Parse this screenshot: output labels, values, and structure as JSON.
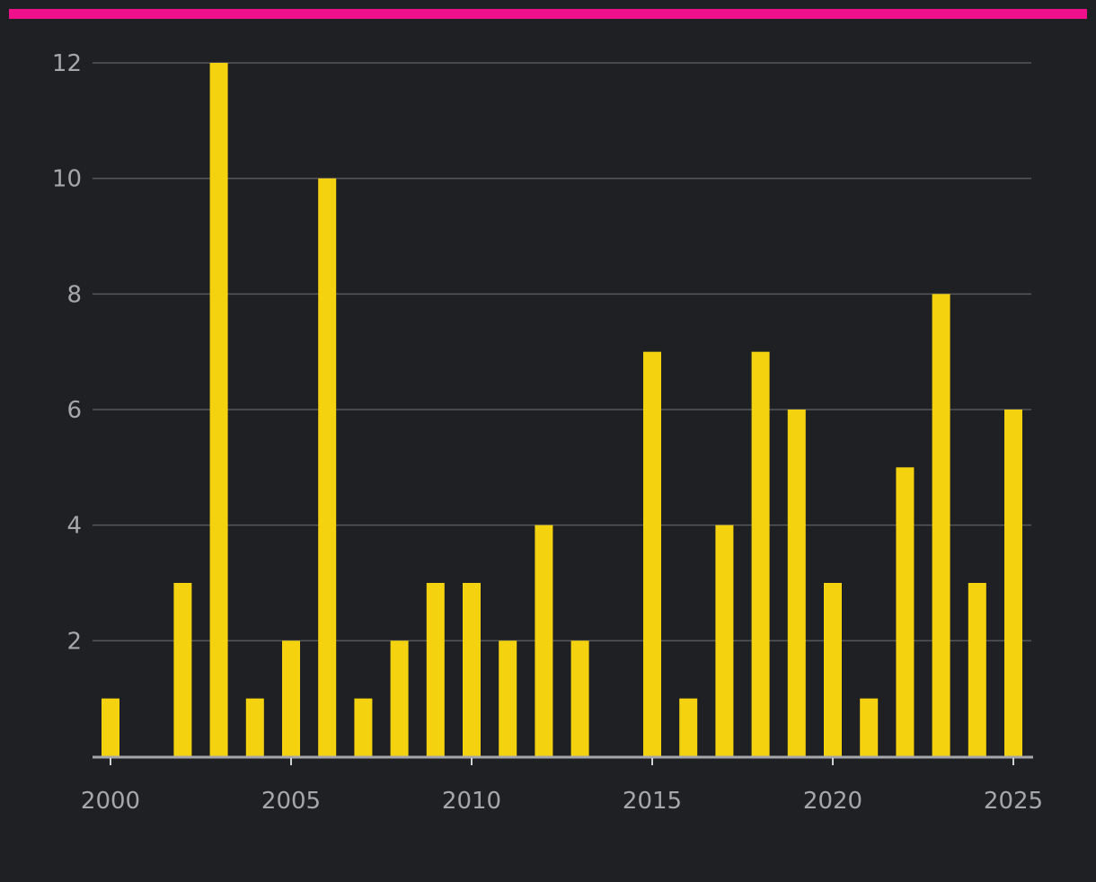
{
  "colors": {
    "background": "#1f2023",
    "accent": "#f0108c",
    "bar": "#f5d20f",
    "grid": "#55575b",
    "axis": "#a6a7ab",
    "text": "#a6a7ab"
  },
  "chart_data": {
    "type": "bar",
    "title": "",
    "xlabel": "",
    "ylabel": "",
    "x": [
      2000,
      2001,
      2002,
      2003,
      2004,
      2005,
      2006,
      2007,
      2008,
      2009,
      2010,
      2011,
      2012,
      2013,
      2014,
      2015,
      2016,
      2017,
      2018,
      2019,
      2020,
      2021,
      2022,
      2023,
      2024,
      2025
    ],
    "values": [
      1,
      0,
      3,
      12,
      1,
      2,
      10,
      1,
      2,
      3,
      3,
      2,
      4,
      2,
      0,
      7,
      1,
      4,
      7,
      6,
      3,
      1,
      5,
      8,
      3,
      6
    ],
    "ylim": [
      0,
      12
    ],
    "y_ticks": [
      2,
      4,
      6,
      8,
      10,
      12
    ],
    "x_ticks": [
      "2000",
      "2005",
      "2010",
      "2015",
      "2020",
      "2025"
    ],
    "grid": "horizontal",
    "legend": "none"
  }
}
